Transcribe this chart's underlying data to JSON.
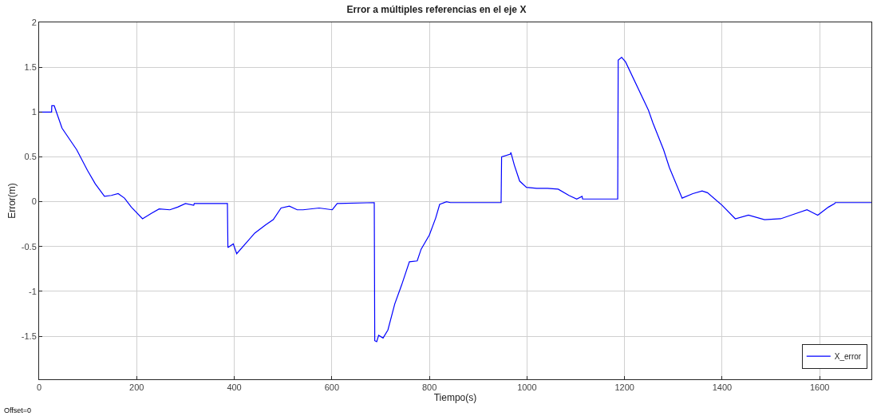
{
  "chart_data": {
    "type": "line",
    "title": "Error a múltiples referencias en el eje X",
    "xlabel": "Tiempo(s)",
    "ylabel": "Error(m)",
    "annotations": [
      "Offset=0"
    ],
    "xlim": [
      0,
      1706
    ],
    "ylim": [
      -1.98,
      2
    ],
    "xticks": [
      0,
      200,
      400,
      600,
      800,
      1000,
      1200,
      1400,
      1600
    ],
    "yticks": [
      -1.5,
      -1,
      -0.5,
      0,
      0.5,
      1,
      1.5,
      2
    ],
    "grid": true,
    "legend": "bottom right",
    "marker": "none",
    "line_style": "solid",
    "series": [
      {
        "name": "X_error",
        "color": "#0000ff",
        "x": [
          0,
          25.6,
          26,
          31,
          47,
          77,
          99,
          115,
          134,
          148,
          162,
          175,
          189,
          212,
          230,
          246,
          268,
          284,
          300,
          317,
          318,
          386,
          387,
          398,
          405,
          426,
          442,
          464,
          480,
          496,
          513,
          529,
          541,
          574,
          601,
          611,
          687,
          688,
          692,
          696,
          705,
          715,
          729,
          743,
          759,
          775,
          783,
          800,
          813,
          821,
          835,
          843,
          947,
          948,
          966,
          967,
          974,
          985,
          999,
          1020,
          1042,
          1064,
          1086,
          1102,
          1113,
          1114,
          1186,
          1187,
          1194,
          1202,
          1249,
          1258,
          1280,
          1292,
          1318,
          1340,
          1359,
          1370,
          1400,
          1427,
          1454,
          1487,
          1520,
          1552,
          1574,
          1596,
          1618,
          1631,
          1632,
          1706
        ],
        "values": [
          1,
          1,
          1.07,
          1.07,
          0.82,
          0.58,
          0.35,
          0.2,
          0.06,
          0.07,
          0.09,
          0.04,
          -0.06,
          -0.19,
          -0.13,
          -0.08,
          -0.09,
          -0.06,
          -0.02,
          -0.04,
          -0.02,
          -0.02,
          -0.51,
          -0.47,
          -0.58,
          -0.45,
          -0.35,
          -0.26,
          -0.2,
          -0.07,
          -0.05,
          -0.09,
          -0.09,
          -0.07,
          -0.09,
          -0.02,
          -0.01,
          -1.55,
          -1.56,
          -1.49,
          -1.52,
          -1.43,
          -1.14,
          -0.93,
          -0.67,
          -0.66,
          -0.53,
          -0.37,
          -0.18,
          -0.03,
          0,
          -0.01,
          -0.01,
          0.5,
          0.53,
          0.55,
          0.41,
          0.23,
          0.16,
          0.15,
          0.15,
          0.14,
          0.07,
          0.03,
          0.06,
          0.03,
          0.03,
          1.58,
          1.61,
          1.56,
          1.02,
          0.88,
          0.58,
          0.38,
          0.04,
          0.09,
          0.12,
          0.1,
          -0.04,
          -0.19,
          -0.15,
          -0.2,
          -0.19,
          -0.13,
          -0.09,
          -0.15,
          -0.06,
          -0.02,
          -0.01,
          -0.01
        ]
      }
    ]
  }
}
